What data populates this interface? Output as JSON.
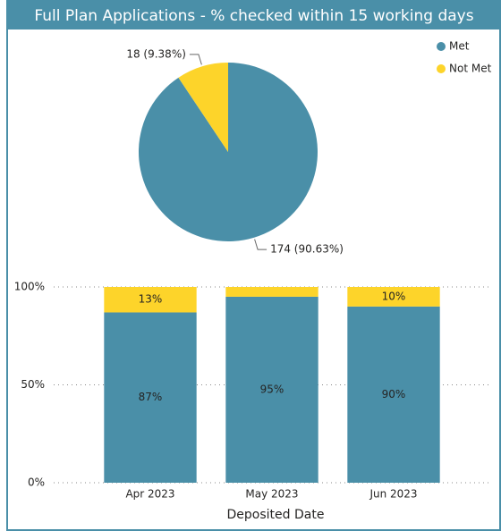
{
  "chart_data": [
    {
      "type": "pie",
      "title": "Full Plan Applications - % checked within 15 working days",
      "categories": [
        "Met",
        "Not Met"
      ],
      "values": [
        174,
        18
      ],
      "value_labels": [
        "174 (90.63%)",
        "18 (9.38%)"
      ],
      "colors": [
        "#4a8fa8",
        "#fdd42a"
      ],
      "legend": "top-right"
    },
    {
      "type": "bar",
      "stacked": true,
      "categories": [
        "Apr 2023",
        "May 2023",
        "Jun 2023"
      ],
      "series": [
        {
          "name": "Met",
          "color": "#4a8fa8",
          "values": [
            87,
            95,
            90
          ],
          "value_labels": [
            "87%",
            "95%",
            "90%"
          ]
        },
        {
          "name": "Not Met",
          "color": "#fdd42a",
          "values": [
            13,
            5,
            10
          ],
          "value_labels": [
            "13%",
            null,
            "10%"
          ]
        }
      ],
      "ylim": [
        0,
        100
      ],
      "yticks": [
        {
          "value": 0,
          "label": "0%"
        },
        {
          "value": 50,
          "label": "50%"
        },
        {
          "value": 100,
          "label": "100%"
        }
      ],
      "xlabel": "Deposited Date",
      "grid": true
    }
  ]
}
